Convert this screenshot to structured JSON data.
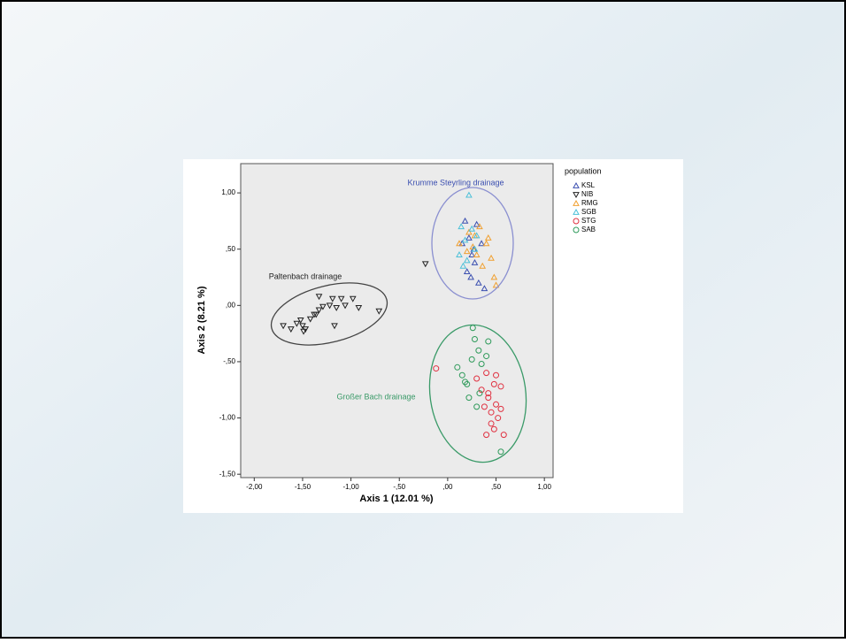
{
  "chart_data": {
    "type": "scatter",
    "x_label": "Axis 1 (12.01 %)",
    "y_label": "Axis 2 (8.21 %)",
    "xlim": [
      -2.14,
      1.09
    ],
    "ylim": [
      -1.53,
      1.26
    ],
    "xticks": [
      {
        "value": -2,
        "label": "-2,00"
      },
      {
        "value": -1.5,
        "label": "-1,50"
      },
      {
        "value": -1,
        "label": "-1,00"
      },
      {
        "value": -0.5,
        "label": "-,50"
      },
      {
        "value": 0,
        "label": ",00"
      },
      {
        "value": 0.5,
        "label": ",50"
      },
      {
        "value": 1,
        "label": "1,00"
      }
    ],
    "yticks": [
      {
        "value": 1,
        "label": "1,00"
      },
      {
        "value": 0.5,
        "label": ",50"
      },
      {
        "value": 0,
        "label": ",00"
      },
      {
        "value": -0.5,
        "label": "-,50"
      },
      {
        "value": -1,
        "label": "-1,00"
      },
      {
        "value": -1.5,
        "label": "-1,50"
      }
    ],
    "legend_title": "population",
    "annotations": [
      "Krumme Steyrling drainage",
      "Paltenbach drainage",
      "Großer Bach drainage"
    ],
    "series": [
      {
        "name": "KSL",
        "color": "#3b4fb0",
        "marker": "triangle-up",
        "x": [
          0.18,
          0.22,
          0.25,
          0.28,
          0.3,
          0.2,
          0.24,
          0.35,
          0.27,
          0.32,
          0.15,
          0.38
        ],
        "y": [
          0.75,
          0.6,
          0.45,
          0.38,
          0.72,
          0.3,
          0.25,
          0.55,
          0.5,
          0.2,
          0.55,
          0.15
        ]
      },
      {
        "name": "NIB",
        "color": "#222222",
        "marker": "triangle-down",
        "x": [
          -1.7,
          -1.62,
          -1.56,
          -1.52,
          -1.5,
          -1.47,
          -1.49,
          -1.42,
          -1.38,
          -1.36,
          -1.33,
          -1.29,
          -1.22,
          -1.19,
          -1.15,
          -1.1,
          -1.06,
          -0.98,
          -0.92,
          -0.71,
          -1.17,
          -0.23,
          -1.33
        ],
        "y": [
          -0.18,
          -0.21,
          -0.16,
          -0.13,
          -0.18,
          -0.21,
          -0.23,
          -0.12,
          -0.08,
          -0.08,
          -0.04,
          -0.01,
          0.0,
          0.06,
          -0.02,
          0.06,
          0.0,
          0.06,
          -0.02,
          -0.05,
          -0.18,
          0.37,
          0.08
        ]
      },
      {
        "name": "RMG",
        "color": "#f0a030",
        "marker": "triangle-up",
        "x": [
          0.12,
          0.2,
          0.28,
          0.33,
          0.4,
          0.45,
          0.48,
          0.5,
          0.36,
          0.26,
          0.42,
          0.3,
          0.22
        ],
        "y": [
          0.55,
          0.48,
          0.62,
          0.7,
          0.55,
          0.42,
          0.25,
          0.18,
          0.35,
          0.52,
          0.6,
          0.45,
          0.65
        ]
      },
      {
        "name": "SGB",
        "color": "#4cc0d8",
        "marker": "triangle-up",
        "x": [
          0.22,
          0.14,
          0.18,
          0.25,
          0.3,
          0.12,
          0.2,
          0.28,
          0.16
        ],
        "y": [
          0.98,
          0.7,
          0.58,
          0.68,
          0.62,
          0.45,
          0.4,
          0.5,
          0.35
        ]
      },
      {
        "name": "STG",
        "color": "#e03040",
        "marker": "circle",
        "x": [
          -0.12,
          0.3,
          0.35,
          0.4,
          0.42,
          0.45,
          0.48,
          0.5,
          0.52,
          0.55,
          0.4,
          0.45,
          0.5,
          0.58,
          0.38,
          0.42,
          0.55,
          0.48
        ],
        "y": [
          -0.56,
          -0.65,
          -0.75,
          -0.6,
          -0.82,
          -0.95,
          -0.7,
          -0.88,
          -1.0,
          -0.92,
          -1.15,
          -1.05,
          -0.62,
          -1.15,
          -0.9,
          -0.78,
          -0.72,
          -1.1
        ]
      },
      {
        "name": "SAB",
        "color": "#2e9a5a",
        "marker": "circle",
        "x": [
          0.1,
          0.15,
          0.2,
          0.25,
          0.28,
          0.32,
          0.22,
          0.18,
          0.3,
          0.35,
          0.42,
          0.26,
          0.55,
          0.4,
          0.33
        ],
        "y": [
          -0.55,
          -0.62,
          -0.7,
          -0.48,
          -0.3,
          -0.4,
          -0.82,
          -0.68,
          -0.9,
          -0.52,
          -0.32,
          -0.2,
          -1.3,
          -0.45,
          -0.78
        ]
      }
    ]
  }
}
